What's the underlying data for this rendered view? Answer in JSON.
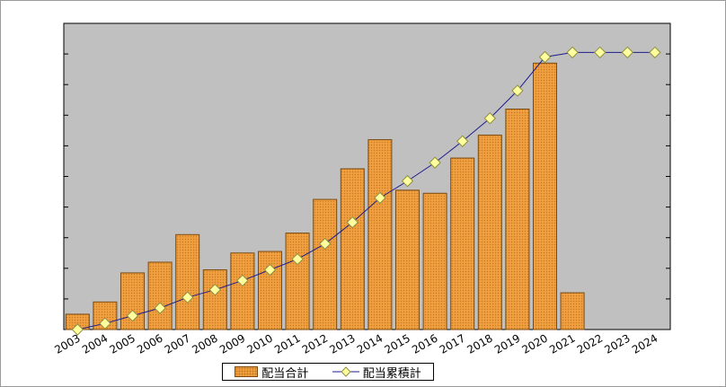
{
  "chart_data": {
    "type": "bar",
    "categories": [
      "2003",
      "2004",
      "2005",
      "2006",
      "2007",
      "2008",
      "2009",
      "2010",
      "2011",
      "2012",
      "2013",
      "2014",
      "2015",
      "2016",
      "2017",
      "2018",
      "2019",
      "2020",
      "2021",
      "2022",
      "2023",
      "2024"
    ],
    "series": [
      {
        "name": "配当合計",
        "type": "bar",
        "values": [
          5,
          9,
          18.5,
          22,
          31,
          19.5,
          25,
          25.5,
          31.5,
          42.5,
          52.5,
          62,
          45.5,
          44.5,
          56,
          63.5,
          72,
          87,
          12,
          null,
          null,
          null
        ]
      },
      {
        "name": "配当累積計",
        "type": "line",
        "values": [
          0,
          2,
          4.5,
          7,
          10.5,
          13,
          16,
          19.5,
          23,
          28,
          35,
          43,
          48.5,
          54.5,
          61.5,
          69,
          78,
          89,
          90.5,
          90.5,
          90.5,
          90.5
        ]
      }
    ],
    "ylim": [
      0,
      100
    ],
    "y_gridlines": false,
    "legend": "bottom-center",
    "colors": {
      "plot_background": "#c0c0c0",
      "bar_fill": "#f0a040",
      "bar_dots": "#c97a20",
      "bar_border": "#7a4a10",
      "line": "#1c1c8c",
      "marker_fill": "#ffffa0",
      "marker_border": "#909040"
    }
  }
}
